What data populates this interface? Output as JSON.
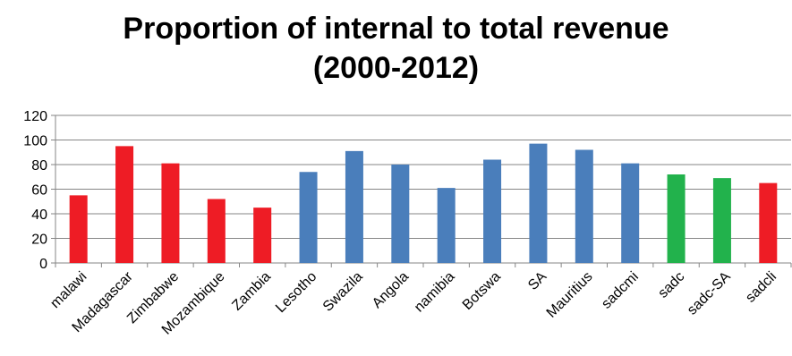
{
  "chart_data": {
    "type": "bar",
    "title_line1": "Proportion of internal to total revenue",
    "title_line2": "(2000-2012)",
    "xlabel": "",
    "ylabel": "",
    "ylim": [
      0,
      120
    ],
    "yticks": [
      "0",
      "20",
      "40",
      "60",
      "80",
      "100",
      "120"
    ],
    "grid": true,
    "legend": "none",
    "categories": [
      "malawi",
      "Madagascar",
      "Zimbabwe",
      "Mozambique",
      "Zambia",
      "Lesotho",
      "Swazila",
      "Angola",
      "namibia",
      "Botswa",
      "SA",
      "Mauritius",
      "sadcmi",
      "sadc",
      "sadc-SA",
      "sadcli"
    ],
    "values": [
      55,
      95,
      81,
      52,
      45,
      74,
      91,
      80,
      61,
      84,
      97,
      92,
      81,
      72,
      69,
      65
    ],
    "colors": [
      "#ee1c25",
      "#ee1c25",
      "#ee1c25",
      "#ee1c25",
      "#ee1c25",
      "#4a7ebb",
      "#4a7ebb",
      "#4a7ebb",
      "#4a7ebb",
      "#4a7ebb",
      "#4a7ebb",
      "#4a7ebb",
      "#4a7ebb",
      "#22b24c",
      "#22b24c",
      "#ee1c25"
    ]
  }
}
